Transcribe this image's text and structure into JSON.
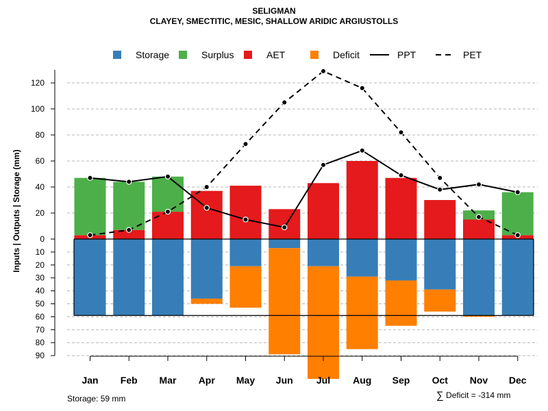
{
  "chart_data": {
    "type": "bar",
    "title": "SELIGMAN",
    "subtitle": "CLAYEY, SMECTITIC, MESIC, SHALLOW ARIDIC ARGIUSTOLLS",
    "ylabel": "Inputs | Outputs | Storage    (mm)",
    "categories": [
      "Jan",
      "Feb",
      "Mar",
      "Apr",
      "May",
      "Jun",
      "Jul",
      "Aug",
      "Sep",
      "Oct",
      "Nov",
      "Dec"
    ],
    "upper_axis": {
      "ylim": [
        0,
        130
      ],
      "ticks": [
        0,
        20,
        40,
        60,
        80,
        100,
        120
      ]
    },
    "lower_axis": {
      "ylim": [
        0,
        90
      ],
      "ticks": [
        0,
        10,
        20,
        30,
        40,
        50,
        60,
        70,
        80,
        90
      ],
      "direction": "down"
    },
    "legend": {
      "position": "top",
      "items": [
        {
          "label": "Storage",
          "kind": "box",
          "color": "#377EB8"
        },
        {
          "label": "Surplus",
          "kind": "box",
          "color": "#4DAF4A"
        },
        {
          "label": "AET",
          "kind": "box",
          "color": "#E41A1C"
        },
        {
          "label": "Deficit",
          "kind": "box",
          "color": "#FF7F00"
        },
        {
          "label": "PPT",
          "kind": "line",
          "dash": "solid"
        },
        {
          "label": "PET",
          "kind": "line",
          "dash": "dashed"
        }
      ]
    },
    "series": [
      {
        "name": "AET",
        "color": "#E41A1C",
        "values": [
          3,
          7,
          21,
          37,
          41,
          23,
          43,
          60,
          47,
          30,
          15,
          3
        ]
      },
      {
        "name": "Surplus",
        "color": "#4DAF4A",
        "values": [
          44,
          37,
          27,
          0,
          0,
          0,
          0,
          0,
          0,
          0,
          7,
          33
        ]
      },
      {
        "name": "Storage",
        "color": "#377EB8",
        "values": [
          59,
          59,
          59,
          46,
          21,
          7,
          21,
          29,
          32,
          39,
          59,
          59
        ]
      },
      {
        "name": "Deficit",
        "color": "#FF7F00",
        "values": [
          0,
          0,
          0,
          4,
          32,
          82,
          87,
          56,
          35,
          17,
          1,
          0
        ]
      },
      {
        "name": "PPT",
        "style": "solid",
        "values": [
          47,
          44,
          48,
          24,
          15,
          9,
          57,
          68,
          49,
          38,
          42,
          36
        ]
      },
      {
        "name": "PET",
        "style": "dashed",
        "values": [
          3,
          7,
          21,
          40,
          73,
          105,
          129,
          116,
          82,
          47,
          17,
          3
        ]
      }
    ],
    "storage_capacity": 59,
    "storage_note": "Storage: 59 mm",
    "deficit_note": "Deficit = -314 mm",
    "deficit_symbol": "∑",
    "grid": true
  }
}
